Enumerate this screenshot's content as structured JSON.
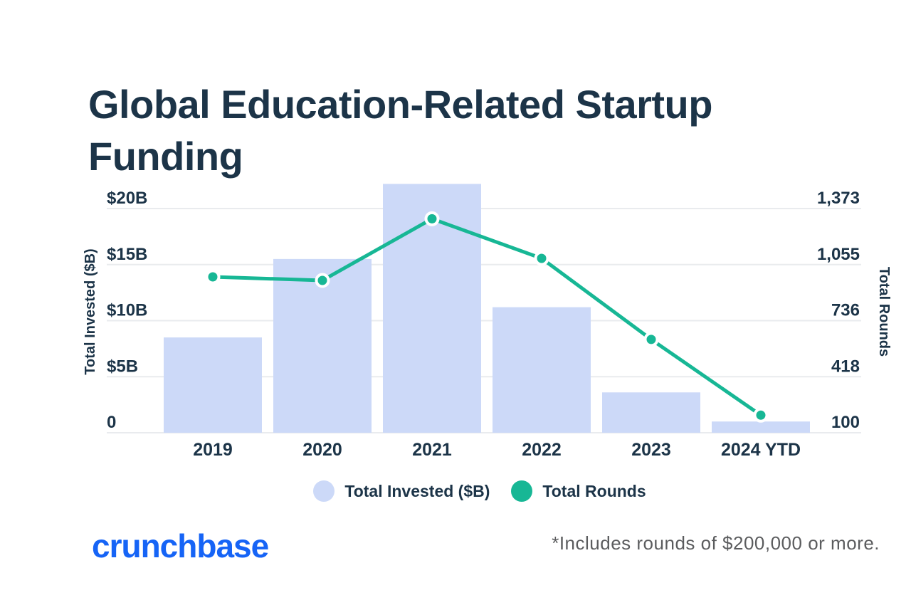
{
  "title": "Global Education-Related Startup Funding",
  "brand": {
    "wordmark": "crunchbase",
    "color": "#1664F6"
  },
  "footnote": "*Includes rounds of $200,000 or more.",
  "legend": {
    "items": [
      {
        "label": "Total Invested ($B)",
        "swatch_color": "#CCD9F8"
      },
      {
        "label": "Total Rounds",
        "swatch_color": "#17B795"
      }
    ]
  },
  "colors": {
    "navy": "#1C3448",
    "bar": "#CCD9F8",
    "teal": "#17B795",
    "gridline": "#E9EBEE",
    "marker_ring": "#FFFFFF"
  },
  "chart_data": {
    "type": "combo-bar-line",
    "categories": [
      "2019",
      "2020",
      "2021",
      "2022",
      "2023",
      "2024 YTD"
    ],
    "series": [
      {
        "name": "Total Invested ($B)",
        "type": "bar",
        "axis": "left",
        "color": "#CCD9F8",
        "values": [
          8.5,
          15.5,
          22.2,
          11.2,
          3.6,
          1.0
        ]
      },
      {
        "name": "Total Rounds",
        "type": "line",
        "axis": "right",
        "color": "#17B795",
        "values": [
          985,
          965,
          1315,
          1090,
          630,
          200
        ]
      }
    ],
    "left_axis": {
      "title": "Total Invested ($B)",
      "tick_values": [
        0,
        5,
        10,
        15,
        20
      ],
      "tick_labels": [
        "0",
        "$5B",
        "$10B",
        "$15B",
        "$20B"
      ]
    },
    "right_axis": {
      "title": "Total Rounds",
      "tick_values": [
        100,
        418,
        736,
        1055,
        1373
      ],
      "tick_labels": [
        "100",
        "418",
        "736",
        "1,055",
        "1,373"
      ],
      "range": [
        100,
        1373
      ]
    },
    "grid": "horizontal",
    "legend_position": "bottom"
  }
}
